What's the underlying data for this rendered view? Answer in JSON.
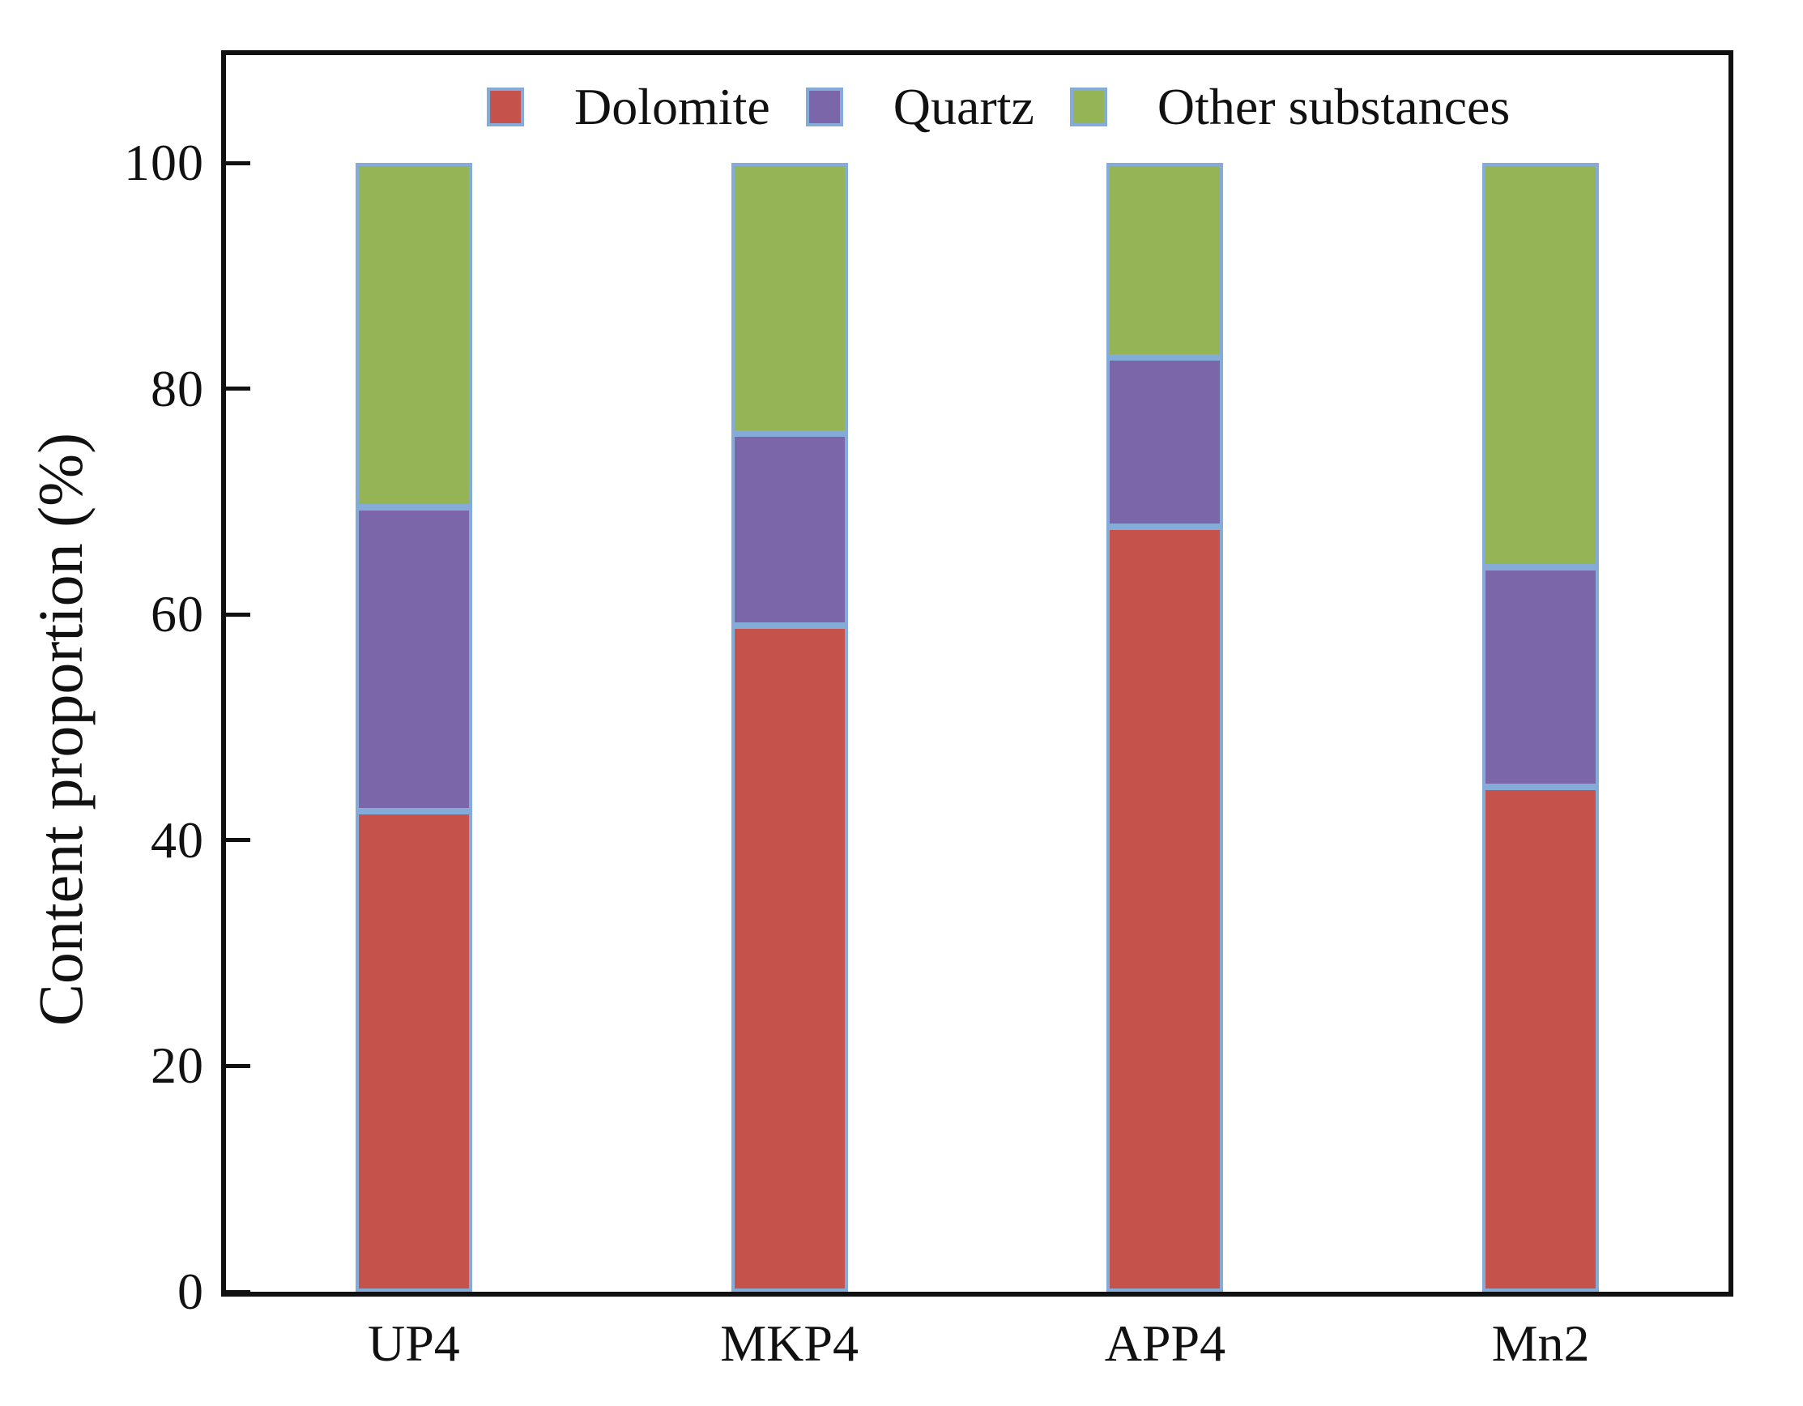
{
  "figure": {
    "background": "#ffffff",
    "spine_color": "#111111",
    "text_color": "#111111"
  },
  "chart_data": {
    "type": "bar",
    "stacked": true,
    "title": "",
    "xlabel": "",
    "ylabel": "Content proportion (%)",
    "categories": [
      "UP4",
      "MKP4",
      "APP4",
      "Mn2"
    ],
    "series": [
      {
        "name": "Dolomite",
        "color": "#C5534C",
        "values": [
          42.6,
          59.0,
          67.8,
          44.7
        ]
      },
      {
        "name": "Quartz",
        "color": "#7A66A8",
        "values": [
          26.9,
          17.0,
          15.0,
          19.5
        ]
      },
      {
        "name": "Other substances",
        "color": "#94B455",
        "values": [
          30.5,
          24.0,
          17.2,
          35.8
        ]
      }
    ],
    "ylim": [
      0,
      100
    ],
    "yticks": [
      0,
      20,
      40,
      60,
      80,
      100
    ],
    "bar_edge_color": "#85ABD9",
    "legend_position": "top-inside",
    "grid": false
  }
}
